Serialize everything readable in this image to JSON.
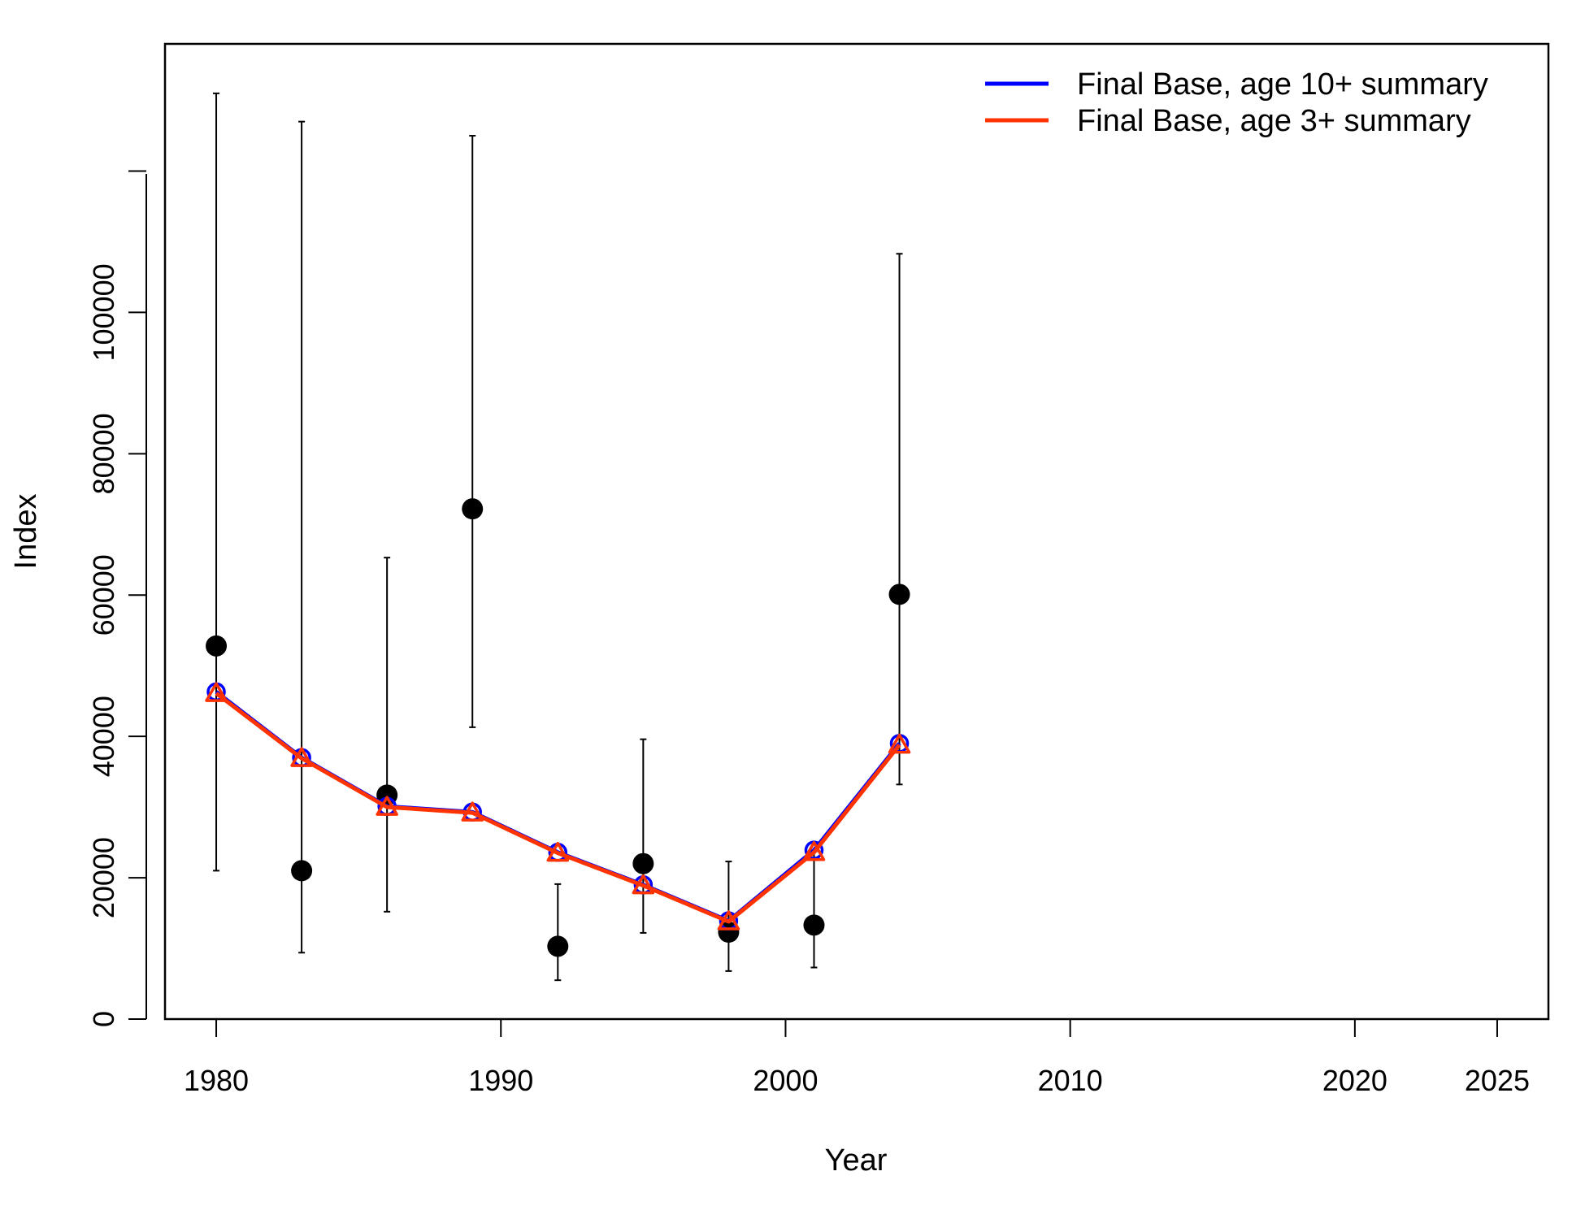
{
  "chart_data": {
    "type": "line",
    "xlabel": "Year",
    "ylabel": "Index",
    "xlim": [
      1978.2,
      2026.8
    ],
    "ylim": [
      0,
      138000
    ],
    "x_ticks": [
      1980,
      1990,
      2000,
      2010,
      2020,
      2025
    ],
    "y_ticks": [
      0,
      20000,
      40000,
      60000,
      80000,
      100000
    ],
    "y_tick_marks": [
      0,
      20000,
      40000,
      60000,
      80000,
      100000,
      120000
    ],
    "legend_position": "top-right",
    "grid": false,
    "observed": {
      "x": [
        1980,
        1983,
        1986,
        1989,
        1992,
        1995,
        1998,
        2001,
        2004
      ],
      "y": [
        52800,
        21000,
        31700,
        72200,
        10300,
        22000,
        12300,
        13300,
        60100
      ],
      "lower": [
        21000,
        9400,
        15200,
        41300,
        5500,
        12200,
        6800,
        7300,
        33200
      ],
      "upper": [
        131000,
        127000,
        65300,
        125000,
        19100,
        39600,
        22300,
        23700,
        108300
      ],
      "color": "#000000"
    },
    "series": [
      {
        "name": "Final Base, age 10+ summary",
        "color": "#0000ff",
        "x": [
          1980,
          1983,
          1986,
          1989,
          1992,
          1995,
          1998,
          2001,
          2004
        ],
        "y": [
          46300,
          37000,
          30100,
          29300,
          23600,
          19000,
          13900,
          23900,
          39000
        ]
      },
      {
        "name": "Final Base, age 3+ summary",
        "color": "#ff3300",
        "x": [
          1980,
          1983,
          1986,
          1989,
          1992,
          1995,
          1998,
          2001,
          2004
        ],
        "y": [
          46100,
          36900,
          30000,
          29200,
          23500,
          18900,
          13800,
          23600,
          38800
        ]
      }
    ]
  }
}
